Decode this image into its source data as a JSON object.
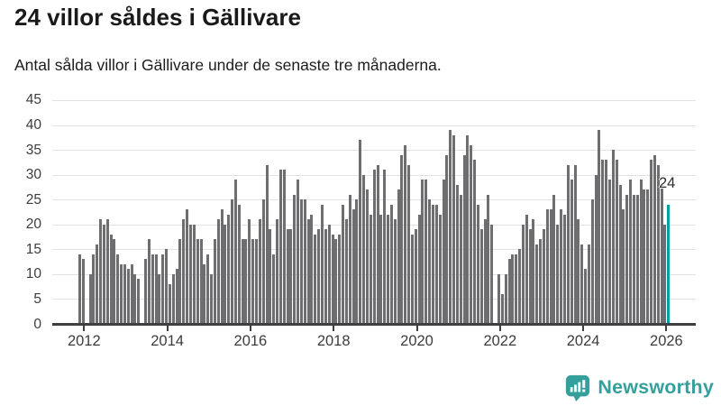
{
  "header": {
    "title": "24 villor såldes i Gällivare",
    "subtitle": "Antal sålda villor i Gällivare under de senaste tre månaderna."
  },
  "branding": {
    "name": "Newsworthy",
    "icon": "newsworthy-bar-chart-bubble"
  },
  "colors": {
    "bar": "#6e6e71",
    "highlight": "#00a1a2",
    "grid": "#e2e2e2",
    "axis": "#3f3f42",
    "tick_text": "#3c3c3c",
    "title_text": "#1a1a1a",
    "brand": "#35a09b"
  },
  "chart_data": {
    "type": "bar",
    "title": "24 villor såldes i Gällivare",
    "subtitle": "Antal sålda villor i Gällivare under de senaste tre månaderna.",
    "xlabel": "",
    "ylabel": "",
    "x_period": "monthly, 2012 to 2026",
    "ylim": [
      0,
      45
    ],
    "yticks": [
      0,
      5,
      10,
      15,
      20,
      25,
      30,
      35,
      40,
      45
    ],
    "xticks": [
      2012,
      2014,
      2016,
      2018,
      2020,
      2022,
      2024,
      2026
    ],
    "grid": "horizontal",
    "legend": "none",
    "annotation": {
      "text": "24",
      "target": "last-bar"
    },
    "highlight_last": true,
    "values": [
      14,
      13,
      0,
      10,
      14,
      16,
      21,
      20,
      21,
      18,
      17,
      14,
      12,
      12,
      11,
      12,
      10,
      9,
      0,
      13,
      17,
      14,
      14,
      10,
      14,
      15,
      8,
      10,
      11,
      17,
      21,
      23,
      20,
      20,
      17,
      17,
      12,
      14,
      10,
      17,
      21,
      23,
      20,
      22,
      25,
      29,
      24,
      17,
      17,
      21,
      17,
      17,
      21,
      25,
      32,
      19,
      14,
      21,
      31,
      31,
      19,
      19,
      26,
      29,
      25,
      25,
      21,
      22,
      18,
      19,
      24,
      19,
      20,
      18,
      17,
      18,
      24,
      21,
      26,
      23,
      25,
      37,
      30,
      27,
      22,
      31,
      32,
      22,
      31,
      22,
      24,
      21,
      27,
      34,
      36,
      32,
      18,
      19,
      22,
      29,
      29,
      25,
      24,
      24,
      22,
      29,
      34,
      39,
      38,
      28,
      26,
      34,
      38,
      36,
      33,
      24,
      19,
      21,
      26,
      20,
      0,
      10,
      6,
      10,
      13,
      14,
      14,
      15,
      20,
      22,
      19,
      21,
      16,
      17,
      19,
      23,
      23,
      26,
      20,
      23,
      22,
      32,
      29,
      32,
      21,
      16,
      11,
      16,
      25,
      30,
      39,
      33,
      33,
      29,
      35,
      33,
      28,
      23,
      26,
      29,
      26,
      26,
      29,
      27,
      27,
      33,
      34,
      32,
      28,
      20,
      24
    ]
  }
}
